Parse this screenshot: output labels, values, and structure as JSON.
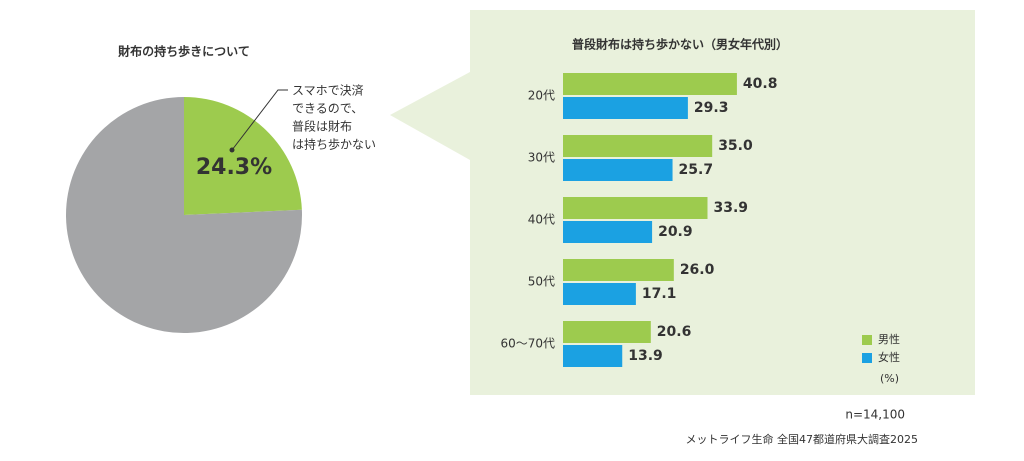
{
  "chart_data": [
    {
      "type": "pie",
      "title": "財布の持ち歩きについて",
      "categories": [
        null,
        null
      ],
      "values": [
        24.3,
        75.7
      ],
      "value_labels": [
        "24.3%",
        null
      ],
      "colors": [
        "#9dcb4e",
        "#a4a5a7"
      ],
      "annotation_lines": [
        "スマホで決済",
        "できるので、",
        "普段は財布",
        "は持ち歩かない"
      ]
    },
    {
      "type": "hbar",
      "title": "普段財布は持ち歩かない（男女年代別）",
      "categories": [
        "20代",
        "30代",
        "40代",
        "50代",
        "60〜70代"
      ],
      "series": [
        {
          "name": "男性",
          "color": "#9dcb4e",
          "values": [
            40.8,
            35.0,
            33.9,
            26.0,
            20.6
          ],
          "value_labels": [
            "40.8",
            "35.0",
            "33.9",
            "26.0",
            "20.6"
          ]
        },
        {
          "name": "女性",
          "color": "#1ba1e2",
          "values": [
            29.3,
            25.7,
            20.9,
            17.1,
            13.9
          ],
          "value_labels": [
            "29.3",
            "25.7",
            "20.9",
            "17.1",
            "13.9"
          ]
        }
      ],
      "xlim": [
        0,
        80
      ],
      "unit": "(%)",
      "legend": "bottom-right"
    }
  ],
  "footer": {
    "sample": "n=14,100",
    "source": "メットライフ生命 全国47都道府県大調査2025"
  }
}
